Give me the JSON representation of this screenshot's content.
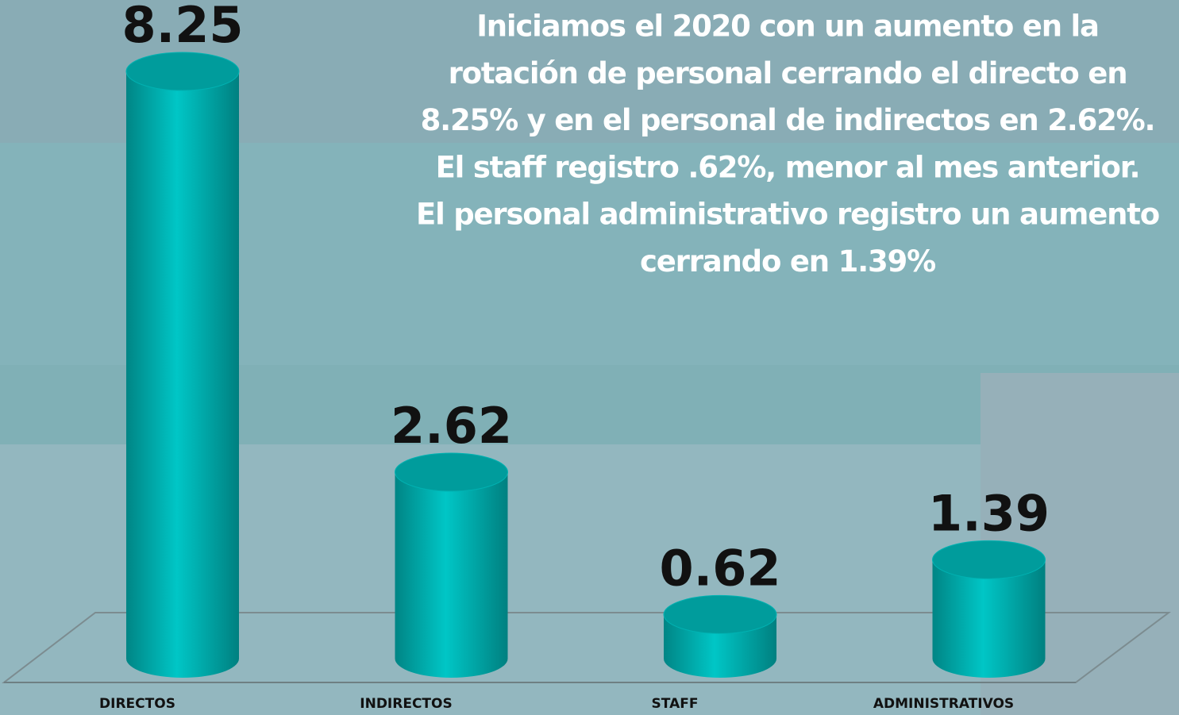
{
  "chart_data": {
    "type": "bar3d",
    "annotation": [
      "Iniciamos el 2020 con un aumento en la",
      "rotación de personal cerrando el directo en",
      "8.25% y en el personal de indirectos en 2.62%.",
      "El staff registro .62%, menor al mes anterior.",
      "El personal administrativo registro un aumento",
      "cerrando en 1.39%"
    ],
    "categories": [
      "DIRECTOS",
      "INDIRECTOS",
      "STAFF",
      "ADMINISTRATIVOS"
    ],
    "values": [
      8.25,
      2.62,
      0.62,
      1.39
    ],
    "color": "#00bcbc"
  }
}
